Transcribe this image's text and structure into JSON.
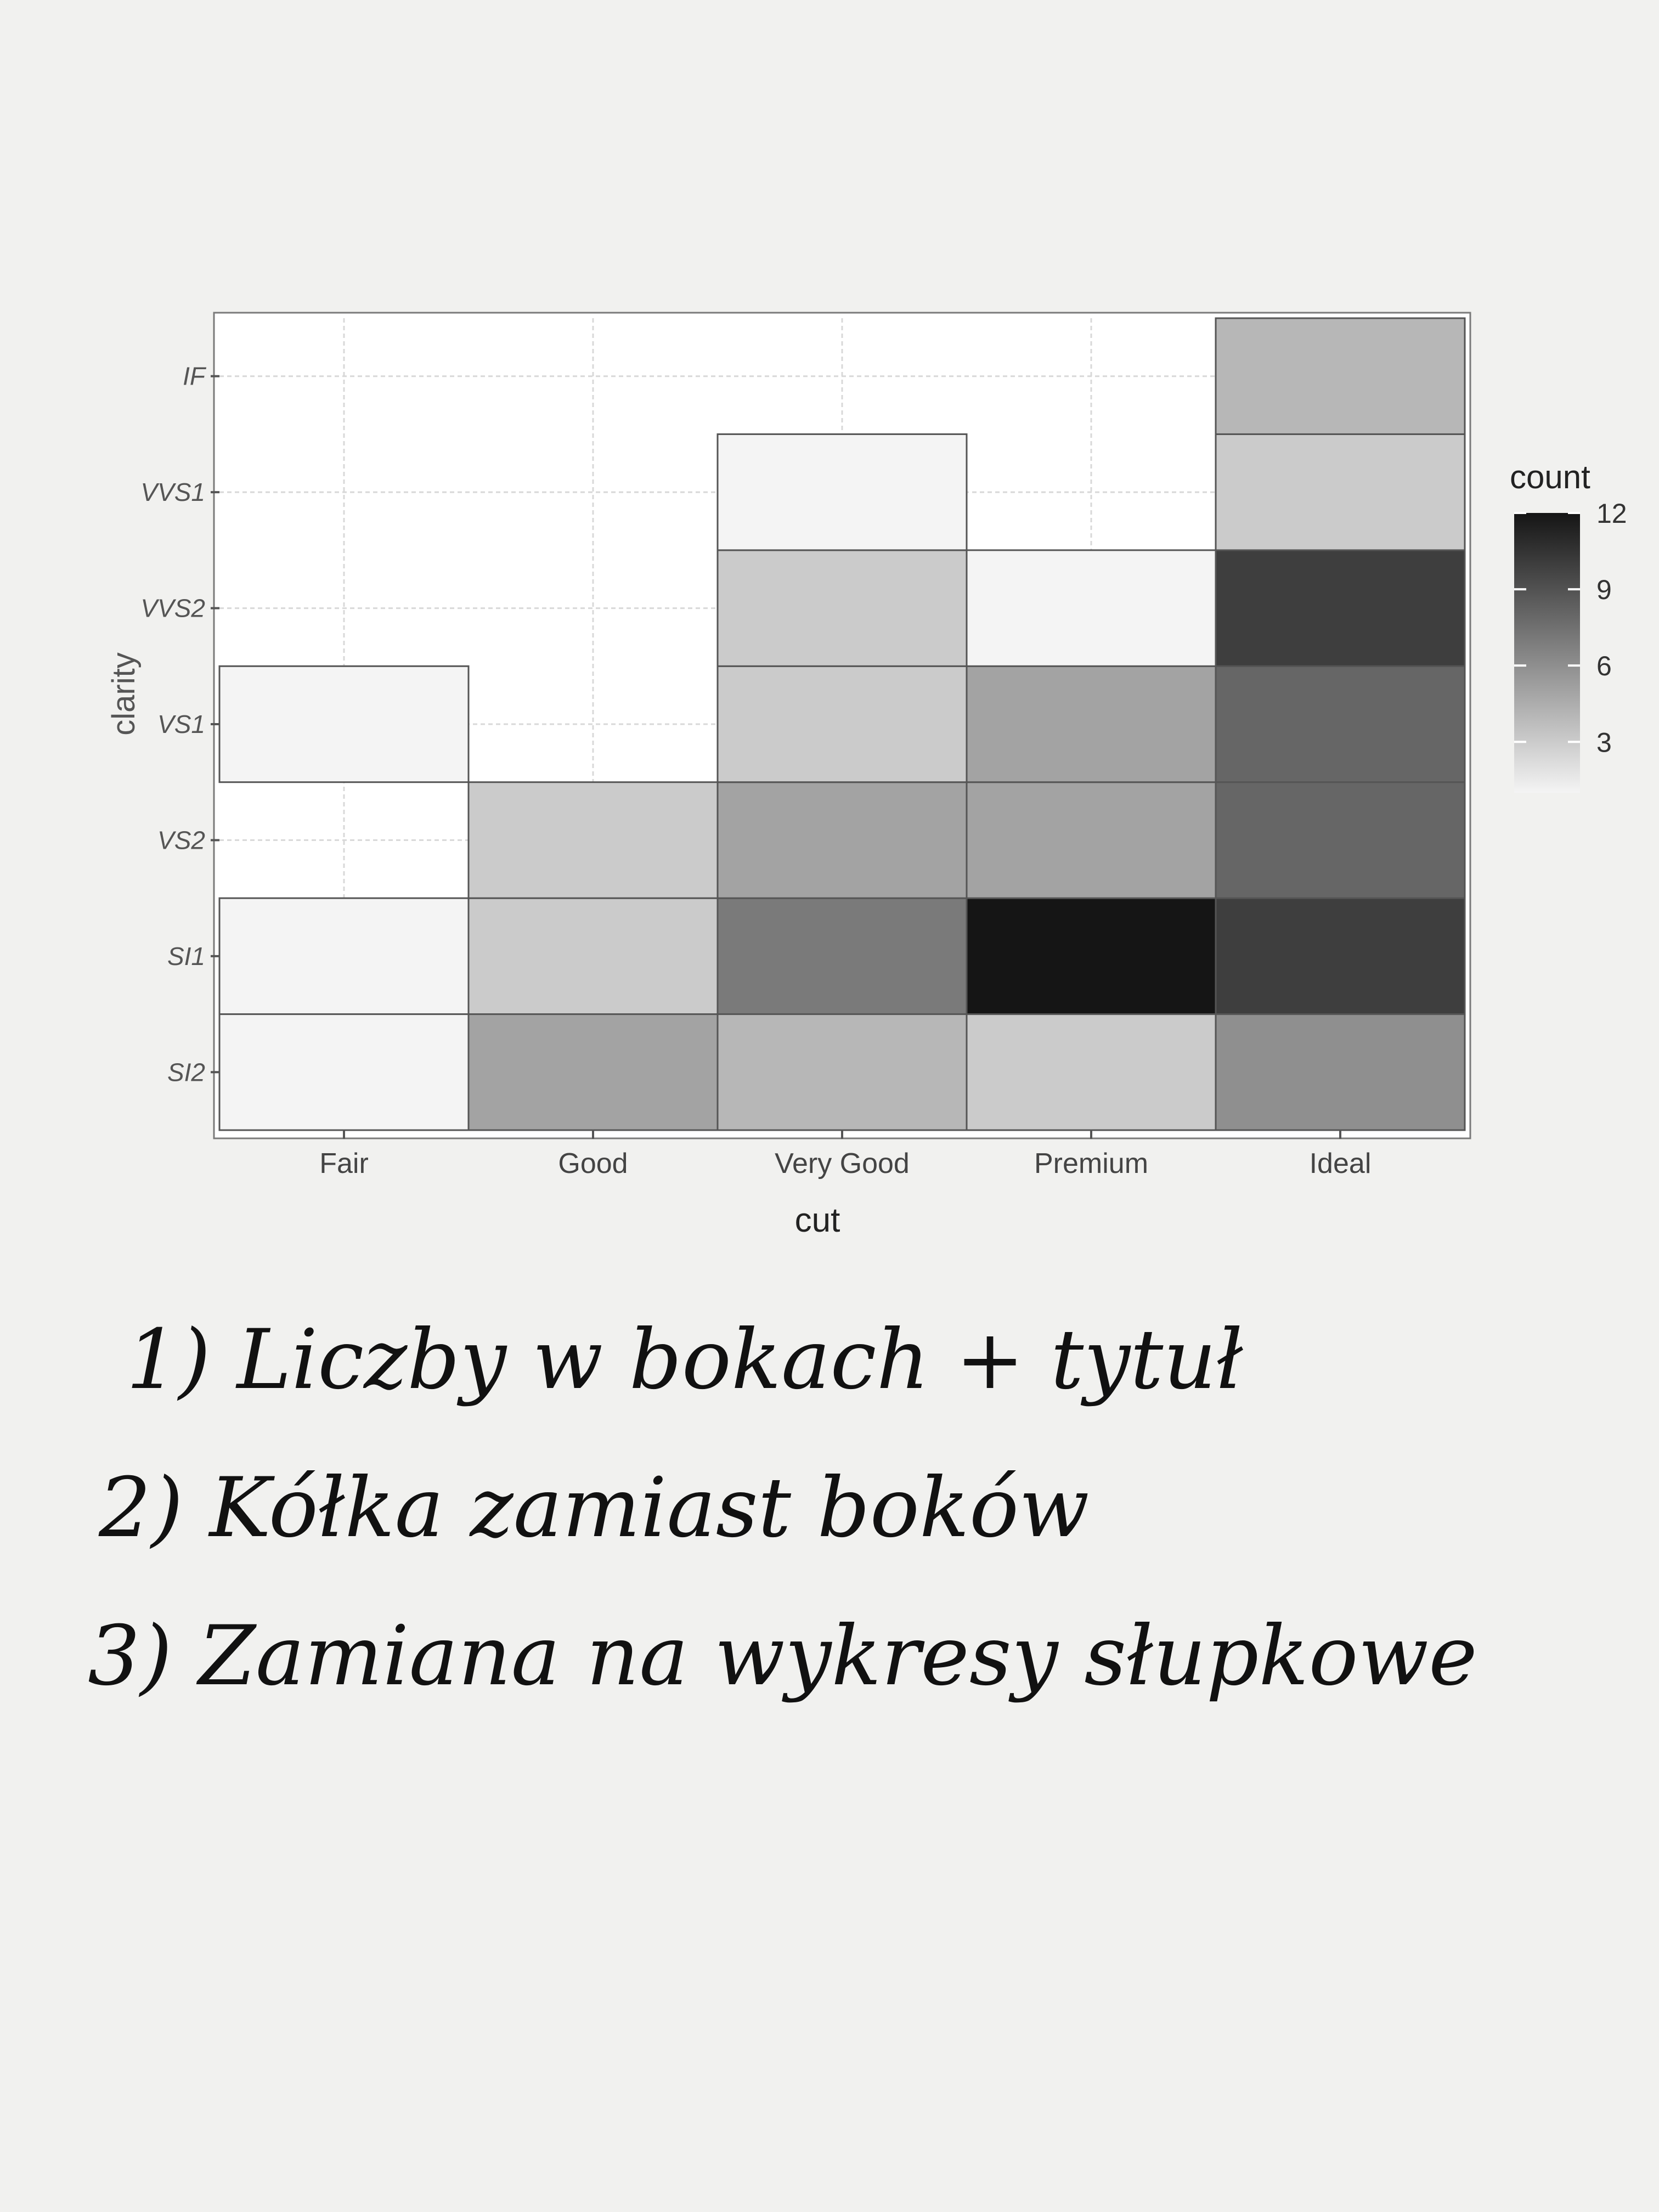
{
  "chart_data": {
    "type": "heatmap",
    "title": "",
    "xlabel": "cut",
    "ylabel": "clarity",
    "x": [
      "Fair",
      "Good",
      "Very Good",
      "Premium",
      "Ideal"
    ],
    "y": [
      "SI2",
      "SI1",
      "VS2",
      "VS1",
      "VVS2",
      "VVS1",
      "IF"
    ],
    "cells": [
      {
        "x": "Fair",
        "y": "SI2",
        "value": 1
      },
      {
        "x": "Fair",
        "y": "SI1",
        "value": 1
      },
      {
        "x": "Fair",
        "y": "VS1",
        "value": 1
      },
      {
        "x": "Good",
        "y": "SI2",
        "value": 5
      },
      {
        "x": "Good",
        "y": "SI1",
        "value": 3
      },
      {
        "x": "Good",
        "y": "VS2",
        "value": 3
      },
      {
        "x": "Very Good",
        "y": "SI2",
        "value": 4
      },
      {
        "x": "Very Good",
        "y": "SI1",
        "value": 7
      },
      {
        "x": "Very Good",
        "y": "VS2",
        "value": 5
      },
      {
        "x": "Very Good",
        "y": "VS1",
        "value": 3
      },
      {
        "x": "Very Good",
        "y": "VVS2",
        "value": 3
      },
      {
        "x": "Very Good",
        "y": "VVS1",
        "value": 1
      },
      {
        "x": "Premium",
        "y": "SI2",
        "value": 3
      },
      {
        "x": "Premium",
        "y": "SI1",
        "value": 12
      },
      {
        "x": "Premium",
        "y": "VS2",
        "value": 5
      },
      {
        "x": "Premium",
        "y": "VS1",
        "value": 5
      },
      {
        "x": "Premium",
        "y": "VVS2",
        "value": 1
      },
      {
        "x": "Ideal",
        "y": "SI2",
        "value": 6
      },
      {
        "x": "Ideal",
        "y": "SI1",
        "value": 10
      },
      {
        "x": "Ideal",
        "y": "VS2",
        "value": 8
      },
      {
        "x": "Ideal",
        "y": "VS1",
        "value": 8
      },
      {
        "x": "Ideal",
        "y": "VVS2",
        "value": 10
      },
      {
        "x": "Ideal",
        "y": "VVS1",
        "value": 3
      },
      {
        "x": "Ideal",
        "y": "IF",
        "value": 4
      }
    ],
    "legend": {
      "title": "count",
      "ticks": [
        3,
        6,
        9,
        12
      ],
      "range": [
        1,
        12
      ],
      "position": "right"
    },
    "colors": {
      "low": "#f4f4f4",
      "high": "#151515"
    },
    "grid": true
  },
  "notes": [
    "1) Liczby w bokach + tytuł",
    "2) Kółka zamiast boków",
    "3) Zamiana na wykresy słupkowe"
  ]
}
